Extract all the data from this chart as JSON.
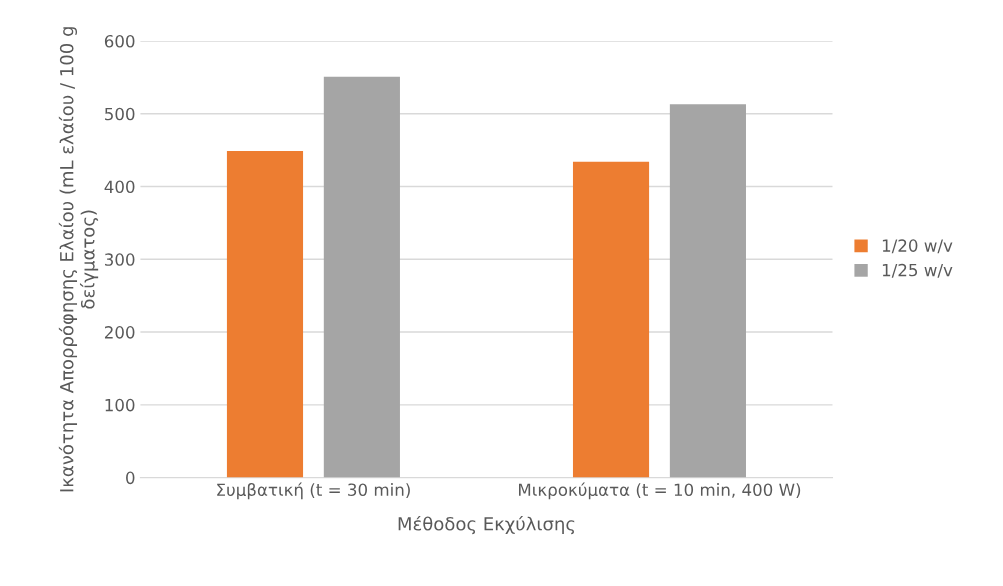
{
  "chart_data": {
    "type": "bar",
    "xlabel": "Μέθοδος Εκχύλισης",
    "ylabel": "Ικανότητα Απορρόφησης Ελαίου (mL ελαίου / 100 g δείγματος)",
    "categories": [
      "Συμβατική (t = 30 min)",
      "Μικροκύματα (t = 10 min, 400 W)"
    ],
    "series": [
      {
        "name": "1/20 w/v",
        "color": "#ed7d31",
        "values": [
          449,
          434
        ]
      },
      {
        "name": "1/25 w/v",
        "color": "#a5a5a5",
        "values": [
          551,
          513
        ]
      }
    ],
    "ylim": [
      0,
      600
    ],
    "yticks": [
      0,
      100,
      200,
      300,
      400,
      500,
      600
    ],
    "grid": "y",
    "legend": "right"
  }
}
